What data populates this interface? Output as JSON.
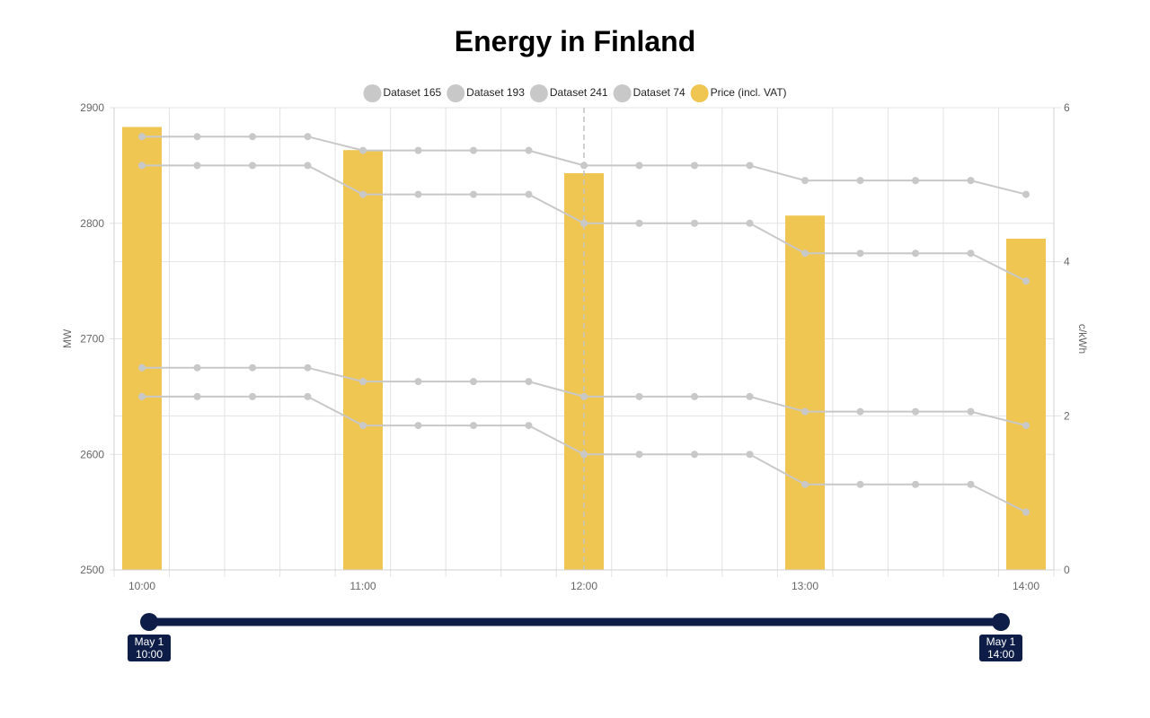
{
  "title": "Energy in Finland",
  "chart_data": {
    "type": "bar+line",
    "title": "Energy in Finland",
    "categories": [
      "10:00",
      "10:15",
      "10:30",
      "10:45",
      "11:00",
      "11:15",
      "11:30",
      "11:45",
      "12:00",
      "12:15",
      "12:30",
      "12:45",
      "13:00",
      "13:15",
      "13:30",
      "13:45",
      "14:00"
    ],
    "x_tick_labels": [
      "10:00",
      "11:00",
      "12:00",
      "13:00",
      "14:00"
    ],
    "y_left": {
      "label": "MW",
      "ticks": [
        2500,
        2600,
        2700,
        2800,
        2900
      ],
      "range": [
        2500,
        2900
      ]
    },
    "y_right": {
      "label": "c/kWh",
      "ticks": [
        0,
        2,
        4,
        6
      ],
      "range": [
        0,
        6
      ]
    },
    "grid": true,
    "legend_position": "top",
    "series": [
      {
        "name": "Dataset 165",
        "type": "line",
        "axis": "left",
        "color": "#c8c8c8",
        "values": [
          2875,
          2875,
          2875,
          2875,
          2863,
          2863,
          2863,
          2863,
          2850,
          2850,
          2850,
          2850,
          2837,
          2837,
          2837,
          2837,
          2825
        ]
      },
      {
        "name": "Dataset 193",
        "type": "line",
        "axis": "left",
        "color": "#c8c8c8",
        "values": [
          2850,
          2850,
          2850,
          2850,
          2825,
          2825,
          2825,
          2825,
          2800,
          2800,
          2800,
          2800,
          2774,
          2774,
          2774,
          2774,
          2750
        ]
      },
      {
        "name": "Dataset 241",
        "type": "line",
        "axis": "left",
        "color": "#c8c8c8",
        "values": [
          2675,
          2675,
          2675,
          2675,
          2663,
          2663,
          2663,
          2663,
          2650,
          2650,
          2650,
          2650,
          2637,
          2637,
          2637,
          2637,
          2625
        ]
      },
      {
        "name": "Dataset 74",
        "type": "line",
        "axis": "left",
        "color": "#c8c8c8",
        "values": [
          2650,
          2650,
          2650,
          2650,
          2625,
          2625,
          2625,
          2625,
          2600,
          2600,
          2600,
          2600,
          2574,
          2574,
          2574,
          2574,
          2550
        ]
      },
      {
        "name": "Price (incl. VAT)",
        "type": "bar",
        "axis": "right",
        "color": "#f0c653",
        "x": [
          "10:00",
          "11:00",
          "12:00",
          "13:00",
          "14:00"
        ],
        "values": [
          5.75,
          5.45,
          5.15,
          4.6,
          4.3
        ]
      }
    ],
    "hover_line_at": "12:00"
  },
  "range_slider": {
    "start_date": "May 1",
    "start_time": "10:00",
    "end_date": "May 1",
    "end_time": "14:00",
    "color": "#0e1d47"
  }
}
